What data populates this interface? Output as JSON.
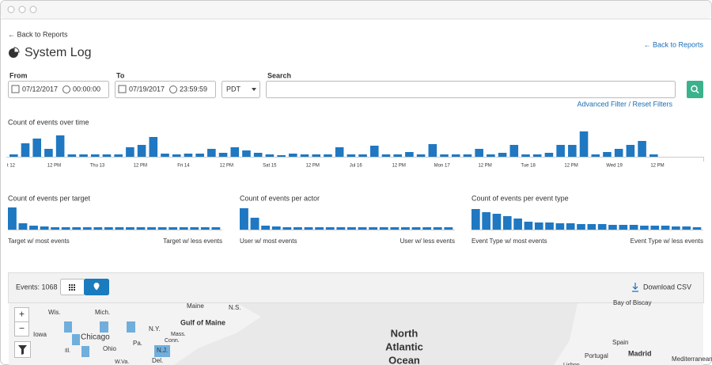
{
  "header": {
    "back_link": "← Back to Reports",
    "title": "System Log",
    "back_link_right": "← Back to Reports"
  },
  "filters": {
    "from_label": "From",
    "from_date": "07/12/2017",
    "from_time": "00:00:00",
    "to_label": "To",
    "to_date": "07/19/2017",
    "to_time": "23:59:59",
    "timezone": "PDT",
    "search_label": "Search",
    "advanced_link": "Advanced Filter / Reset Filters"
  },
  "timeline": {
    "title": "Count of events over time",
    "x_labels": [
      "t 12",
      "12 PM",
      "Thu 13",
      "12 PM",
      "Fri 14",
      "12 PM",
      "Sat 15",
      "12 PM",
      "Jul 16",
      "12 PM",
      "Mon 17",
      "12 PM",
      "Tue 18",
      "12 PM",
      "Wed 19",
      "12 PM"
    ],
    "values": [
      3,
      17,
      23,
      10,
      27,
      3,
      3,
      3,
      3,
      3,
      12,
      15,
      25,
      4,
      3,
      4,
      4,
      10,
      5,
      12,
      8,
      5,
      3,
      2,
      4,
      3,
      3,
      3,
      12,
      3,
      3,
      14,
      3,
      3,
      6,
      3,
      16,
      3,
      3,
      3,
      10,
      3,
      5,
      15,
      3,
      3,
      5,
      15,
      15,
      32,
      3,
      6,
      10,
      15,
      20,
      3
    ]
  },
  "small_charts": [
    {
      "title": "Count of events per target",
      "left_label": "Target w/ most events",
      "right_label": "Target w/ less events",
      "values": [
        28,
        8,
        5,
        4,
        3,
        3,
        3,
        3,
        3,
        3,
        3,
        3,
        3,
        3,
        3,
        3,
        3,
        3,
        3,
        3
      ]
    },
    {
      "title": "Count of events per actor",
      "left_label": "User w/ most events",
      "right_label": "User w/ less events",
      "values": [
        27,
        15,
        5,
        4,
        3,
        3,
        3,
        3,
        3,
        3,
        3,
        3,
        3,
        3,
        3,
        3,
        3,
        3,
        3,
        3
      ]
    },
    {
      "title": "Count of events per event type",
      "left_label": "Event Type w/ most events",
      "right_label": "Event Type w/ less events",
      "values": [
        26,
        22,
        20,
        17,
        14,
        10,
        9,
        9,
        8,
        8,
        7,
        7,
        7,
        6,
        6,
        6,
        5,
        5,
        5,
        4,
        4,
        3
      ]
    }
  ],
  "events": {
    "count_label": "Events: 1068",
    "download": "Download CSV"
  },
  "map": {
    "labels": [
      "Maine",
      "N.S.",
      "Wis.",
      "Mich.",
      "Gulf of Maine",
      "N.Y.",
      "Iowa",
      "Chicago",
      "Mass.",
      "Conn.",
      "Ohio",
      "Pa.",
      "Ill.",
      "N.J.",
      "W.Va.",
      "Del.",
      "North",
      "Atlantic",
      "Ocean",
      "Bay of Biscay",
      "Spain",
      "Madrid",
      "Portugal",
      "Lisbon",
      "Mediterranean"
    ],
    "zoom_in": "+",
    "zoom_out": "−"
  }
}
